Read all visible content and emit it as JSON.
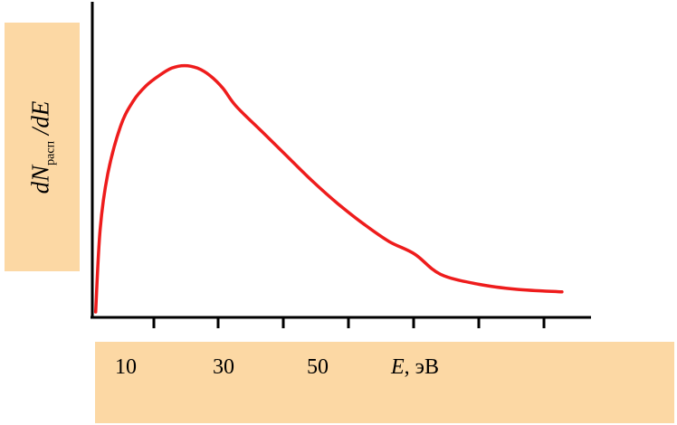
{
  "chart_data": {
    "type": "line",
    "title": "",
    "ylabel": {
      "prefix": "dN",
      "subscript": "расп",
      "suffix": " /dE"
    },
    "xlabel": {
      "variable": "E",
      "unit": ", эВ"
    },
    "x_tick_labels": [
      "10",
      "30",
      "50"
    ],
    "xlim": [
      0,
      75
    ],
    "ylim": [
      0,
      1
    ],
    "grid": false,
    "line_color": "#ee1c1c",
    "series": [
      {
        "x": [
          0.1,
          0.8,
          2,
          4,
          6,
          8,
          10,
          12,
          14,
          16,
          18,
          20,
          22,
          26,
          30,
          34,
          38,
          42,
          46,
          50,
          54,
          60,
          66,
          73
        ],
        "y": [
          0.0,
          0.33,
          0.55,
          0.74,
          0.84,
          0.9,
          0.94,
          0.97,
          0.98,
          0.97,
          0.94,
          0.89,
          0.82,
          0.72,
          0.62,
          0.52,
          0.43,
          0.35,
          0.28,
          0.23,
          0.15,
          0.11,
          0.09,
          0.08
        ]
      }
    ]
  }
}
